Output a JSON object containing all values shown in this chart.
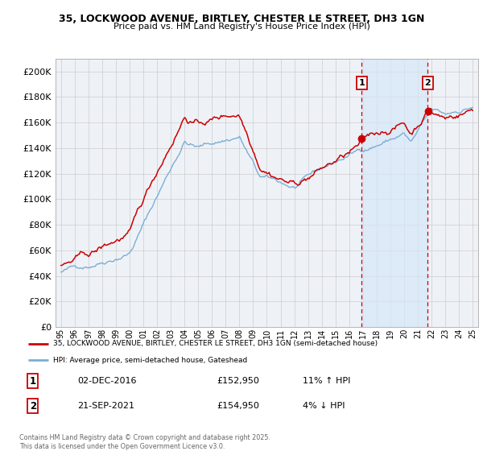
{
  "title1": "35, LOCKWOOD AVENUE, BIRTLEY, CHESTER LE STREET, DH3 1GN",
  "title2": "Price paid vs. HM Land Registry's House Price Index (HPI)",
  "ylim": [
    0,
    210000
  ],
  "yticks": [
    0,
    20000,
    40000,
    60000,
    80000,
    100000,
    120000,
    140000,
    160000,
    180000,
    200000
  ],
  "legend_line1": "35, LOCKWOOD AVENUE, BIRTLEY, CHESTER LE STREET, DH3 1GN (semi-detached house)",
  "legend_line2": "HPI: Average price, semi-detached house, Gateshead",
  "annotation1_label": "1",
  "annotation1_date": "02-DEC-2016",
  "annotation1_price": "£152,950",
  "annotation1_pct": "11% ↑ HPI",
  "annotation1_year": 2016.92,
  "annotation2_label": "2",
  "annotation2_date": "21-SEP-2021",
  "annotation2_price": "£154,950",
  "annotation2_pct": "4% ↓ HPI",
  "annotation2_year": 2021.72,
  "red_color": "#cc0000",
  "blue_color": "#7aafd4",
  "bg_color": "#eef2f7",
  "grid_color": "#cccccc",
  "shade_color": "#d6e8f7",
  "footer": "Contains HM Land Registry data © Crown copyright and database right 2025.\nThis data is licensed under the Open Government Licence v3.0."
}
